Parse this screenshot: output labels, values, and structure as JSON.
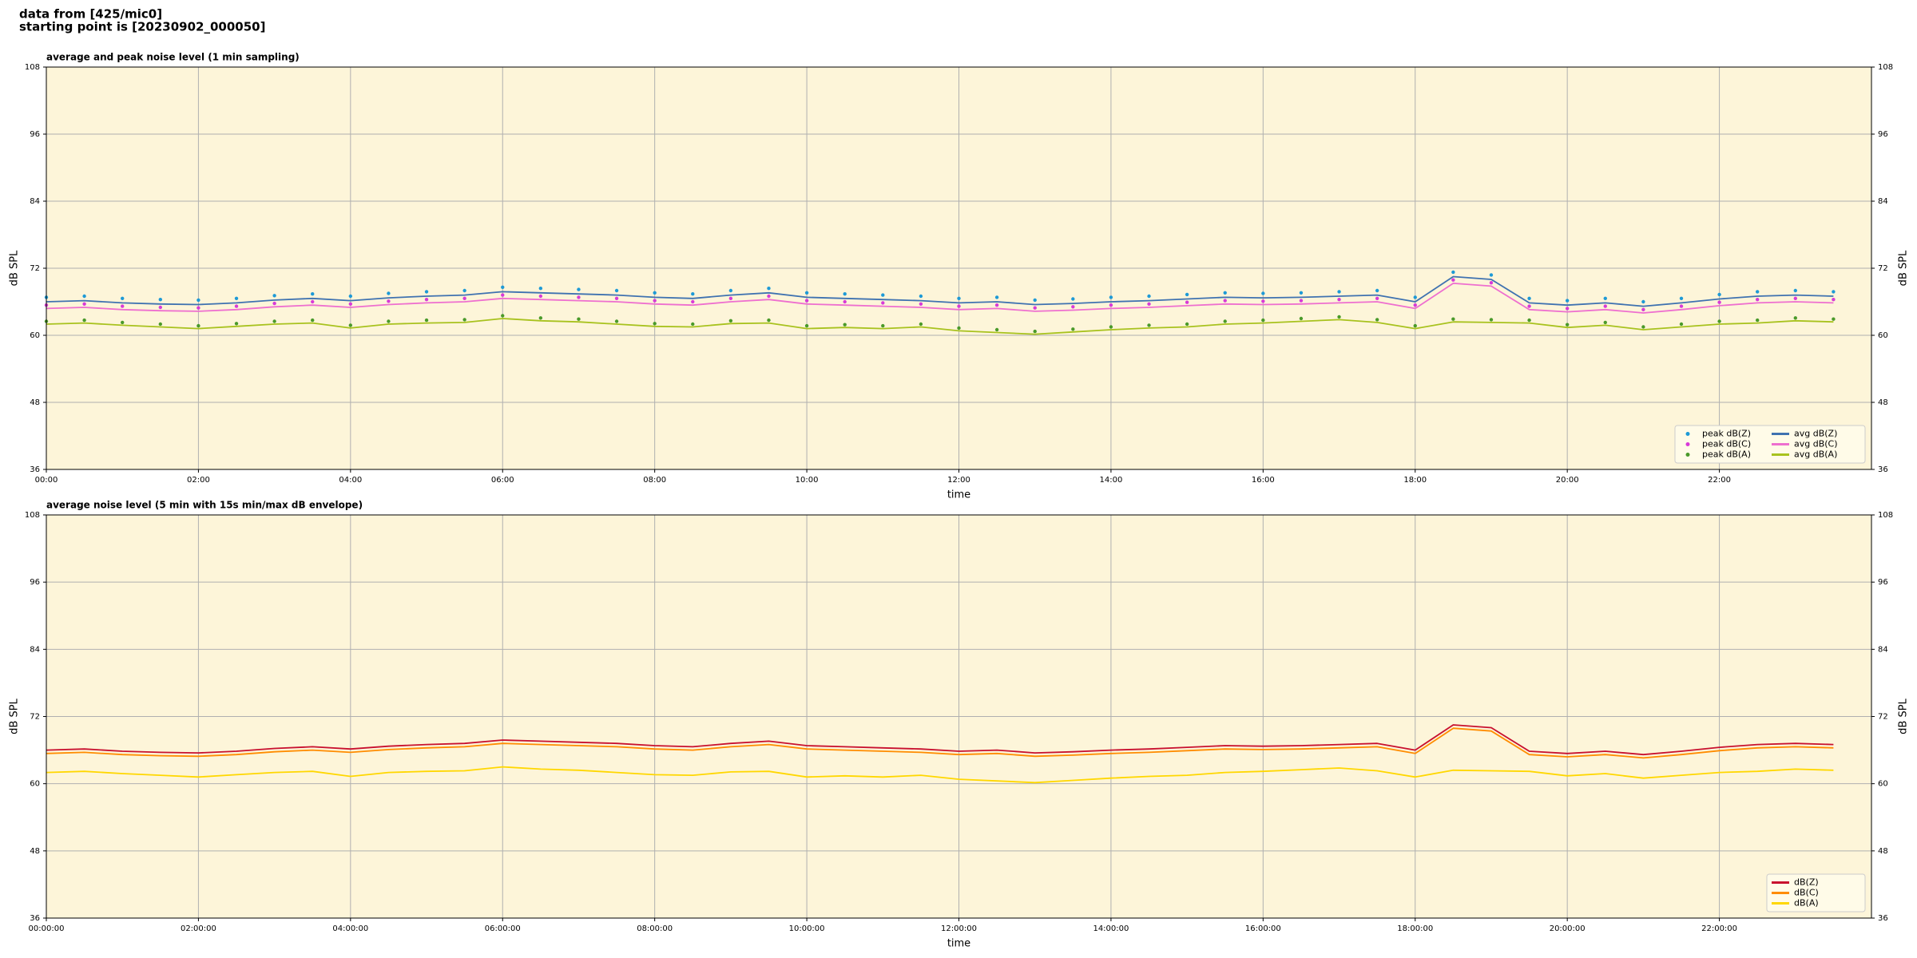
{
  "header": {
    "line1": "data from [425/mic0]",
    "line2": "starting point is [20230902_000050]"
  },
  "chart_data": [
    {
      "type": "line",
      "title": "average and peak noise level (1 min sampling)",
      "xlabel": "time",
      "ylabel": "dB SPL",
      "background": "#fdf5d9",
      "grid": true,
      "legend": "lower right",
      "legend_columns": 2,
      "xlim": [
        0,
        24
      ],
      "ylim": [
        36,
        108
      ],
      "xticks": [
        {
          "value": 0,
          "label": "00:00"
        },
        {
          "value": 2,
          "label": "02:00"
        },
        {
          "value": 4,
          "label": "04:00"
        },
        {
          "value": 6,
          "label": "06:00"
        },
        {
          "value": 8,
          "label": "08:00"
        },
        {
          "value": 10,
          "label": "10:00"
        },
        {
          "value": 12,
          "label": "12:00"
        },
        {
          "value": 14,
          "label": "14:00"
        },
        {
          "value": 16,
          "label": "16:00"
        },
        {
          "value": 18,
          "label": "18:00"
        },
        {
          "value": 20,
          "label": "20:00"
        },
        {
          "value": 22,
          "label": "22:00"
        }
      ],
      "yticks": [
        36,
        48,
        60,
        72,
        84,
        96,
        108
      ],
      "x": [
        0,
        0.5,
        1,
        1.5,
        2,
        2.5,
        3,
        3.5,
        4,
        4.5,
        5,
        5.5,
        6,
        6.5,
        7,
        7.5,
        8,
        8.5,
        9,
        9.5,
        10,
        10.5,
        11,
        11.5,
        12,
        12.5,
        13,
        13.5,
        14,
        14.5,
        15,
        15.5,
        16,
        16.5,
        17,
        17.5,
        18,
        18.5,
        19,
        19.5,
        20,
        20.5,
        21,
        21.5,
        22,
        22.5,
        23,
        23.5
      ],
      "series": [
        {
          "name": "peak dB(Z)",
          "kind": "scatter",
          "color": "#1e9ad6",
          "values": [
            66.8,
            67,
            66.6,
            66.4,
            66.3,
            66.6,
            67.1,
            67.4,
            67,
            67.5,
            67.8,
            68,
            68.6,
            68.4,
            68.2,
            68,
            67.6,
            67.4,
            68,
            68.4,
            67.6,
            67.4,
            67.2,
            67,
            66.6,
            66.8,
            66.3,
            66.5,
            66.8,
            67,
            67.3,
            67.6,
            67.5,
            67.6,
            67.8,
            68,
            66.8,
            71.3,
            70.8,
            66.6,
            66.2,
            66.6,
            66,
            66.6,
            67.3,
            67.8,
            68,
            67.8
          ]
        },
        {
          "name": "peak dB(C)",
          "kind": "scatter",
          "color": "#d83ad8",
          "values": [
            65.4,
            65.6,
            65.2,
            65,
            64.9,
            65.2,
            65.7,
            66,
            65.6,
            66.1,
            66.4,
            66.6,
            67.2,
            67,
            66.8,
            66.6,
            66.2,
            66,
            66.6,
            67,
            66.2,
            66,
            65.8,
            65.6,
            65.2,
            65.4,
            64.9,
            65.1,
            65.4,
            65.6,
            65.9,
            66.2,
            66.1,
            66.2,
            66.4,
            66.6,
            65.4,
            69.9,
            69.4,
            65.2,
            64.8,
            65.2,
            64.6,
            65.2,
            65.9,
            66.4,
            66.6,
            66.4
          ]
        },
        {
          "name": "peak dB(A)",
          "kind": "scatter",
          "color": "#4a9a2a",
          "values": [
            62.5,
            62.7,
            62.3,
            62,
            61.7,
            62.1,
            62.5,
            62.7,
            61.8,
            62.5,
            62.7,
            62.8,
            63.5,
            63.1,
            62.9,
            62.5,
            62.1,
            62,
            62.6,
            62.7,
            61.7,
            61.9,
            61.7,
            62,
            61.3,
            61,
            60.7,
            61.1,
            61.5,
            61.8,
            62,
            62.5,
            62.7,
            63,
            63.3,
            62.8,
            61.7,
            62.9,
            62.8,
            62.7,
            61.9,
            62.3,
            61.5,
            62,
            62.5,
            62.7,
            63.1,
            62.9
          ]
        },
        {
          "name": "avg dB(Z)",
          "kind": "line",
          "color": "#3f72b0",
          "values": [
            66,
            66.2,
            65.8,
            65.6,
            65.5,
            65.8,
            66.3,
            66.6,
            66.2,
            66.7,
            67,
            67.2,
            67.8,
            67.6,
            67.4,
            67.2,
            66.8,
            66.6,
            67.2,
            67.6,
            66.8,
            66.6,
            66.4,
            66.2,
            65.8,
            66,
            65.5,
            65.7,
            66,
            66.2,
            66.5,
            66.8,
            66.7,
            66.8,
            67,
            67.2,
            66,
            70.5,
            70,
            65.8,
            65.4,
            65.8,
            65.2,
            65.8,
            66.5,
            67,
            67.2,
            67
          ]
        },
        {
          "name": "avg dB(C)",
          "kind": "line",
          "color": "#ee6fcf",
          "values": [
            64.8,
            65,
            64.6,
            64.4,
            64.3,
            64.6,
            65.1,
            65.4,
            65,
            65.5,
            65.8,
            66,
            66.6,
            66.4,
            66.2,
            66,
            65.6,
            65.4,
            66,
            66.4,
            65.6,
            65.4,
            65.2,
            65,
            64.6,
            64.8,
            64.3,
            64.5,
            64.8,
            65,
            65.3,
            65.6,
            65.5,
            65.6,
            65.8,
            66,
            64.8,
            69.3,
            68.8,
            64.6,
            64.2,
            64.6,
            64,
            64.6,
            65.3,
            65.8,
            66,
            65.8
          ]
        },
        {
          "name": "avg dB(A)",
          "kind": "line",
          "color": "#a8c21e",
          "values": [
            62,
            62.2,
            61.8,
            61.5,
            61.2,
            61.6,
            62,
            62.2,
            61.3,
            62,
            62.2,
            62.3,
            63,
            62.6,
            62.4,
            62,
            61.6,
            61.5,
            62.1,
            62.2,
            61.2,
            61.4,
            61.2,
            61.5,
            60.8,
            60.5,
            60.2,
            60.6,
            61,
            61.3,
            61.5,
            62,
            62.2,
            62.5,
            62.8,
            62.3,
            61.2,
            62.4,
            62.3,
            62.2,
            61.4,
            61.8,
            61,
            61.5,
            62,
            62.2,
            62.6,
            62.4
          ]
        }
      ]
    },
    {
      "type": "line",
      "title": "average noise level (5 min with 15s min/max dB envelope)",
      "xlabel": "time",
      "ylabel": "dB SPL",
      "background": "#fdf5d9",
      "grid": true,
      "legend": "lower right",
      "legend_columns": 1,
      "xlim": [
        0,
        24
      ],
      "ylim": [
        36,
        108
      ],
      "xticks": [
        {
          "value": 0,
          "label": "00:00:00"
        },
        {
          "value": 2,
          "label": "02:00:00"
        },
        {
          "value": 4,
          "label": "04:00:00"
        },
        {
          "value": 6,
          "label": "06:00:00"
        },
        {
          "value": 8,
          "label": "08:00:00"
        },
        {
          "value": 10,
          "label": "10:00:00"
        },
        {
          "value": 12,
          "label": "12:00:00"
        },
        {
          "value": 14,
          "label": "14:00:00"
        },
        {
          "value": 16,
          "label": "16:00:00"
        },
        {
          "value": 18,
          "label": "18:00:00"
        },
        {
          "value": 20,
          "label": "20:00:00"
        },
        {
          "value": 22,
          "label": "22:00:00"
        }
      ],
      "yticks": [
        36,
        48,
        60,
        72,
        84,
        96,
        108
      ],
      "x": [
        0,
        0.5,
        1,
        1.5,
        2,
        2.5,
        3,
        3.5,
        4,
        4.5,
        5,
        5.5,
        6,
        6.5,
        7,
        7.5,
        8,
        8.5,
        9,
        9.5,
        10,
        10.5,
        11,
        11.5,
        12,
        12.5,
        13,
        13.5,
        14,
        14.5,
        15,
        15.5,
        16,
        16.5,
        17,
        17.5,
        18,
        18.5,
        19,
        19.5,
        20,
        20.5,
        21,
        21.5,
        22,
        22.5,
        23,
        23.5
      ],
      "series": [
        {
          "name": "dB(Z)",
          "kind": "line",
          "color": "#c8102e",
          "values": [
            66,
            66.2,
            65.8,
            65.6,
            65.5,
            65.8,
            66.3,
            66.6,
            66.2,
            66.7,
            67,
            67.2,
            67.8,
            67.6,
            67.4,
            67.2,
            66.8,
            66.6,
            67.2,
            67.6,
            66.8,
            66.6,
            66.4,
            66.2,
            65.8,
            66,
            65.5,
            65.7,
            66,
            66.2,
            66.5,
            66.8,
            66.7,
            66.8,
            67,
            67.2,
            66,
            70.5,
            70,
            65.8,
            65.4,
            65.8,
            65.2,
            65.8,
            66.5,
            67,
            67.2,
            67
          ]
        },
        {
          "name": "dB(C)",
          "kind": "line",
          "color": "#ff8c00",
          "values": [
            65.4,
            65.6,
            65.2,
            65,
            64.9,
            65.2,
            65.7,
            66,
            65.6,
            66.1,
            66.4,
            66.6,
            67.2,
            67,
            66.8,
            66.6,
            66.2,
            66,
            66.6,
            67,
            66.2,
            66,
            65.8,
            65.6,
            65.2,
            65.4,
            64.9,
            65.1,
            65.4,
            65.6,
            65.9,
            66.2,
            66.1,
            66.2,
            66.4,
            66.6,
            65.4,
            69.9,
            69.4,
            65.2,
            64.8,
            65.2,
            64.6,
            65.2,
            65.9,
            66.4,
            66.6,
            66.4
          ]
        },
        {
          "name": "dB(A)",
          "kind": "line",
          "color": "#ffd700",
          "values": [
            62,
            62.2,
            61.8,
            61.5,
            61.2,
            61.6,
            62,
            62.2,
            61.3,
            62,
            62.2,
            62.3,
            63,
            62.6,
            62.4,
            62,
            61.6,
            61.5,
            62.1,
            62.2,
            61.2,
            61.4,
            61.2,
            61.5,
            60.8,
            60.5,
            60.2,
            60.6,
            61,
            61.3,
            61.5,
            62,
            62.2,
            62.5,
            62.8,
            62.3,
            61.2,
            62.4,
            62.3,
            62.2,
            61.4,
            61.8,
            61,
            61.5,
            62,
            62.2,
            62.6,
            62.4
          ]
        }
      ]
    }
  ]
}
